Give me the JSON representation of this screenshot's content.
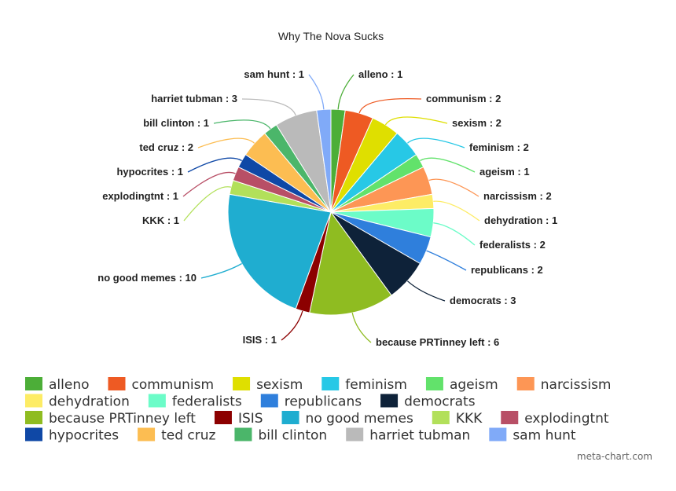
{
  "chart_data": {
    "type": "pie",
    "title": "Why The Nova Sucks",
    "slices": [
      {
        "label": "alleno",
        "value": 1,
        "color": "#4cae38"
      },
      {
        "label": "communism",
        "value": 2,
        "color": "#ee5a23"
      },
      {
        "label": "sexism",
        "value": 2,
        "color": "#dfdf00"
      },
      {
        "label": "feminism",
        "value": 2,
        "color": "#27c8e6"
      },
      {
        "label": "ageism",
        "value": 1,
        "color": "#62e26b"
      },
      {
        "label": "narcissism",
        "value": 2,
        "color": "#fd9655"
      },
      {
        "label": "dehydration",
        "value": 1,
        "color": "#fdec65"
      },
      {
        "label": "federalists",
        "value": 2,
        "color": "#6cfcc8"
      },
      {
        "label": "republicans",
        "value": 2,
        "color": "#2f7fdc"
      },
      {
        "label": "democrats",
        "value": 3,
        "color": "#0e2239"
      },
      {
        "label": "because PRTinney left",
        "value": 6,
        "color": "#8fbc21"
      },
      {
        "label": "ISIS",
        "value": 1,
        "color": "#8c0000"
      },
      {
        "label": "no good memes",
        "value": 10,
        "color": "#1fadd0"
      },
      {
        "label": "KKK",
        "value": 1,
        "color": "#b2e05a"
      },
      {
        "label": "explodingtnt",
        "value": 1,
        "color": "#b84f66"
      },
      {
        "label": "hypocrites",
        "value": 1,
        "color": "#0f48a6"
      },
      {
        "label": "ted cruz",
        "value": 2,
        "color": "#fcbd52"
      },
      {
        "label": "bill clinton",
        "value": 1,
        "color": "#4bb66a"
      },
      {
        "label": "harriet tubman",
        "value": 3,
        "color": "#bababa"
      },
      {
        "label": "sam hunt",
        "value": 1,
        "color": "#80aaf8"
      }
    ],
    "legend_position": "bottom"
  },
  "watermark": "meta-chart.com"
}
